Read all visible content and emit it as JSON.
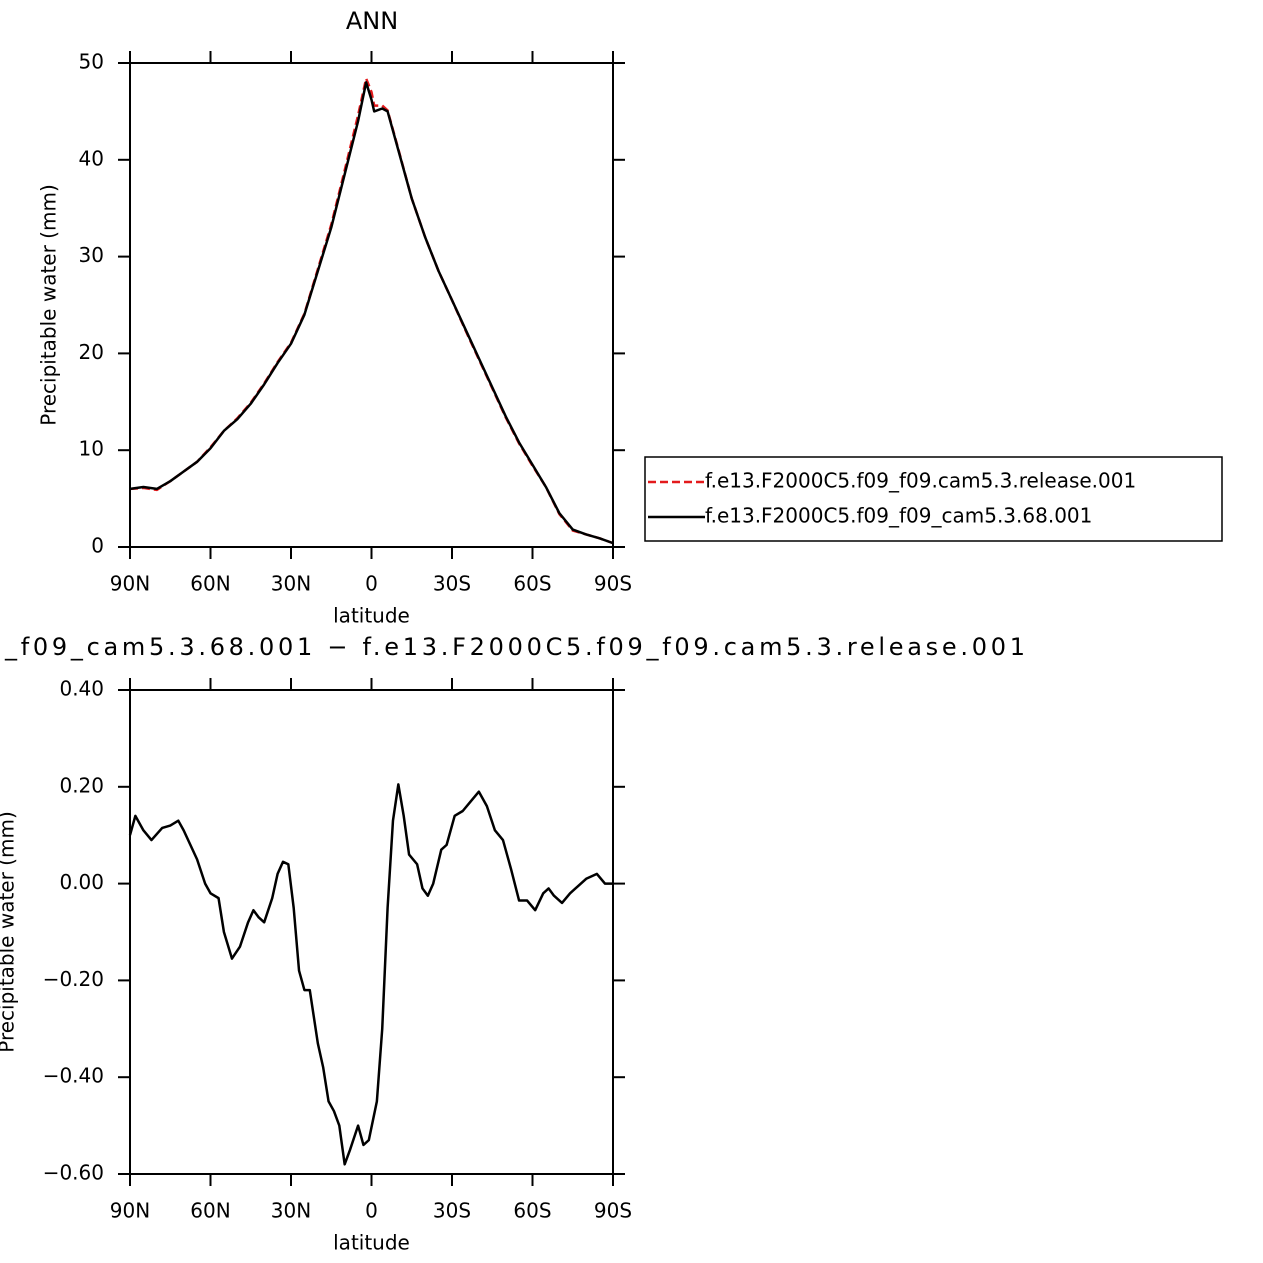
{
  "chart_data": [
    {
      "type": "line",
      "title": "ANN",
      "xlabel": "latitude",
      "ylabel": "Precipitable water (mm)",
      "x": [
        90,
        85,
        80,
        75,
        70,
        65,
        60,
        55,
        50,
        45,
        40,
        35,
        30,
        25,
        20,
        15,
        10,
        5,
        2,
        0,
        -1,
        -4,
        -6,
        -10,
        -15,
        -20,
        -25,
        -30,
        -35,
        -40,
        -45,
        -50,
        -55,
        -60,
        -65,
        -70,
        -75,
        -80,
        -85,
        -90
      ],
      "xlim": [
        90,
        -90
      ],
      "xticks": [
        {
          "value": 90,
          "label": "90N"
        },
        {
          "value": 60,
          "label": "60N"
        },
        {
          "value": 30,
          "label": "30N"
        },
        0,
        {
          "value": -30,
          "label": "30S"
        },
        {
          "value": -60,
          "label": "60S"
        },
        {
          "value": -90,
          "label": "90S"
        }
      ],
      "ylim": [
        0,
        50
      ],
      "yticks": [
        0,
        10,
        20,
        30,
        40,
        50
      ],
      "legend": "right",
      "series": [
        {
          "name": "f.e13.F2000C5.f09_f09.cam5.3.release.001",
          "color": "#e31a1c",
          "dash": true,
          "values": [
            6.0,
            6.1,
            5.9,
            6.8,
            7.8,
            8.8,
            10.3,
            12.0,
            13.3,
            14.9,
            16.9,
            19.1,
            21.1,
            24.1,
            28.7,
            33.3,
            38.9,
            44.6,
            48.4,
            47.0,
            45.6,
            45.6,
            45.1,
            41.1,
            36.0,
            32.0,
            28.5,
            25.5,
            22.4,
            19.4,
            16.4,
            13.4,
            10.7,
            8.4,
            6.2,
            3.4,
            1.7,
            1.3,
            0.9,
            0.4
          ]
        },
        {
          "name": "f.e13.F2000C5.f09_f09_cam5.3.68.001",
          "color": "#000000",
          "dash": false,
          "values": [
            6.0,
            6.2,
            6.0,
            6.8,
            7.8,
            8.8,
            10.2,
            12.0,
            13.2,
            14.8,
            16.8,
            19.0,
            21.0,
            24.0,
            28.5,
            33.0,
            38.5,
            44.0,
            48.0,
            46.2,
            45.0,
            45.3,
            45.0,
            41.0,
            36.0,
            32.0,
            28.5,
            25.5,
            22.5,
            19.5,
            16.5,
            13.5,
            10.8,
            8.5,
            6.2,
            3.5,
            1.8,
            1.3,
            0.9,
            0.4
          ]
        }
      ]
    },
    {
      "type": "line",
      "title": "_f09_cam5.3.68.001 − f.e13.F2000C5.f09_f09.cam5.3.release.001",
      "xlabel": "latitude",
      "ylabel": "Precipitable water (mm)",
      "x": [
        90,
        88,
        85,
        82,
        78,
        75,
        72,
        70,
        65,
        62,
        60,
        57,
        55,
        52,
        49,
        46,
        44,
        42,
        40,
        37,
        35,
        33,
        31,
        29,
        27,
        25,
        23,
        20,
        18,
        16,
        14,
        12,
        10,
        8,
        5,
        3,
        1,
        -2,
        -4,
        -6,
        -8,
        -10,
        -12,
        -14,
        -17,
        -19,
        -21,
        -23,
        -26,
        -28,
        -31,
        -34,
        -37,
        -40,
        -43,
        -46,
        -49,
        -52,
        -55,
        -58,
        -61,
        -64,
        -66,
        -68,
        -71,
        -74,
        -77,
        -80,
        -84,
        -87,
        -90
      ],
      "xlim": [
        90,
        -90
      ],
      "xticks": [
        {
          "value": 90,
          "label": "90N"
        },
        {
          "value": 60,
          "label": "60N"
        },
        {
          "value": 30,
          "label": "30N"
        },
        0,
        {
          "value": -30,
          "label": "30S"
        },
        {
          "value": -60,
          "label": "60S"
        },
        {
          "value": -90,
          "label": "90S"
        }
      ],
      "ylim": [
        -0.6,
        0.4
      ],
      "yticks": [
        {
          "value": 0.4,
          "label": "0.40"
        },
        {
          "value": 0.2,
          "label": "0.20"
        },
        {
          "value": 0,
          "label": "0.00"
        },
        {
          "value": -0.2,
          "label": "−0.20"
        },
        {
          "value": -0.4,
          "label": "−0.40"
        },
        {
          "value": -0.6,
          "label": "−0.60"
        }
      ],
      "series": [
        {
          "color": "#000000",
          "dash": false,
          "values": [
            0.1,
            0.14,
            0.11,
            0.09,
            0.115,
            0.12,
            0.13,
            0.11,
            0.05,
            0.0,
            -0.02,
            -0.03,
            -0.1,
            -0.155,
            -0.13,
            -0.08,
            -0.055,
            -0.07,
            -0.08,
            -0.03,
            0.02,
            0.045,
            0.04,
            -0.05,
            -0.18,
            -0.22,
            -0.22,
            -0.33,
            -0.38,
            -0.45,
            -0.47,
            -0.5,
            -0.58,
            -0.55,
            -0.5,
            -0.54,
            -0.53,
            -0.45,
            -0.3,
            -0.05,
            0.13,
            0.205,
            0.14,
            0.06,
            0.04,
            -0.01,
            -0.025,
            0.0,
            0.07,
            0.08,
            0.14,
            0.15,
            0.17,
            0.19,
            0.16,
            0.11,
            0.09,
            0.03,
            -0.035,
            -0.035,
            -0.055,
            -0.02,
            -0.01,
            -0.025,
            -0.04,
            -0.02,
            -0.005,
            0.01,
            0.02,
            0.0,
            0.0
          ]
        }
      ]
    }
  ]
}
